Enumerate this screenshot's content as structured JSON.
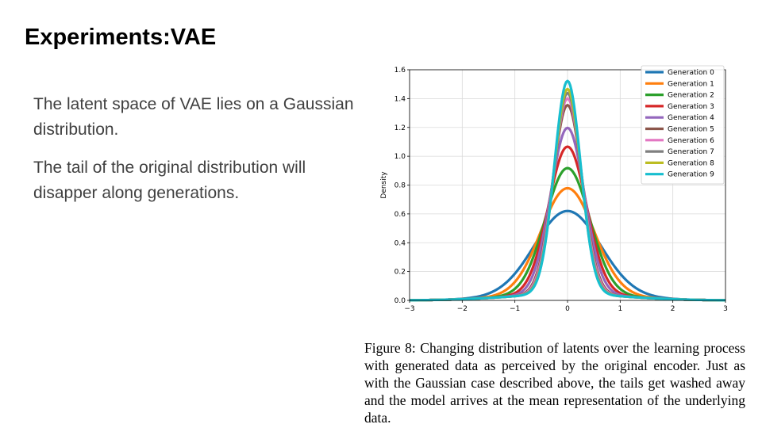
{
  "slide": {
    "title": "Experiments:VAE",
    "bullets": [
      "The latent space of VAE lies on a Gaussian distribution.",
      "The tail of the original distribution will disapper along generations."
    ]
  },
  "figure": {
    "caption": "Figure 8: Changing distribution of latents over the learning process with generated data as perceived by the original encoder. Just as with the Gaussian case described above, the tails get washed away and the model arrives at the mean representation of the underlying data."
  },
  "chart_data": {
    "type": "line",
    "title": "",
    "xlabel": "",
    "ylabel": "Density",
    "xlim": [
      -3,
      3
    ],
    "ylim": [
      0,
      1.6
    ],
    "x_ticks": [
      "−3",
      "−2",
      "−1",
      "0",
      "1",
      "2",
      "3"
    ],
    "y_ticks": [
      "0.0",
      "0.2",
      "0.4",
      "0.6",
      "0.8",
      "1.0",
      "1.2",
      "1.4",
      "1.6"
    ],
    "grid": true,
    "legend_position": "top-right",
    "series": [
      {
        "name": "Generation 0",
        "color": "#1f77b4",
        "peak": 0.62,
        "sigma": 0.62
      },
      {
        "name": "Generation 1",
        "color": "#ff7f0e",
        "peak": 0.79,
        "sigma": 0.5
      },
      {
        "name": "Generation 2",
        "color": "#2ca02c",
        "peak": 0.94,
        "sigma": 0.42
      },
      {
        "name": "Generation 3",
        "color": "#d62728",
        "peak": 1.1,
        "sigma": 0.36
      },
      {
        "name": "Generation 4",
        "color": "#9467bd",
        "peak": 1.24,
        "sigma": 0.32
      },
      {
        "name": "Generation 5",
        "color": "#8c564b",
        "peak": 1.41,
        "sigma": 0.28
      },
      {
        "name": "Generation 6",
        "color": "#e377c2",
        "peak": 1.46,
        "sigma": 0.27
      },
      {
        "name": "Generation 7",
        "color": "#7f7f7f",
        "peak": 1.5,
        "sigma": 0.26
      },
      {
        "name": "Generation 8",
        "color": "#bcbd22",
        "peak": 1.53,
        "sigma": 0.255
      },
      {
        "name": "Generation 9",
        "color": "#17becf",
        "peak": 1.59,
        "sigma": 0.25
      }
    ]
  }
}
